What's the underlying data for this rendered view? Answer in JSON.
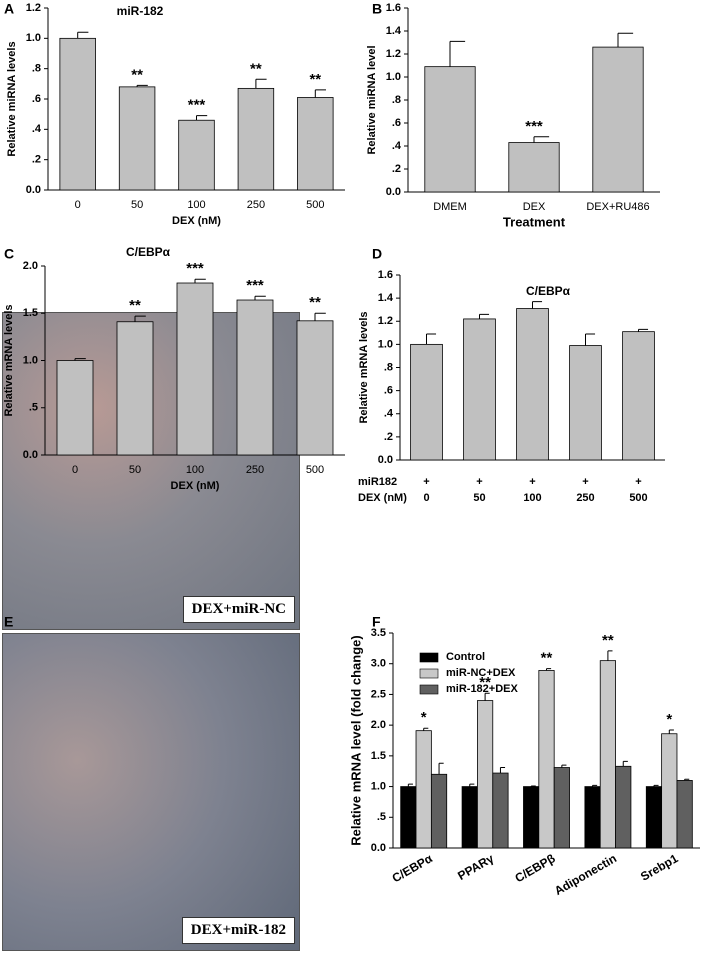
{
  "chart_data": [
    {
      "type": "bar",
      "panel": "A",
      "title": "miR-182",
      "ylabel": "Relative miRNA levels",
      "xlabel": "DEX (nM)",
      "categories": [
        "0",
        "50",
        "100",
        "250",
        "500"
      ],
      "values": [
        1.0,
        0.68,
        0.46,
        0.67,
        0.61
      ],
      "errors": [
        0.04,
        0.01,
        0.03,
        0.06,
        0.05
      ],
      "annotations": [
        null,
        "**",
        "***",
        "**",
        "**"
      ],
      "color": "#c0c0c0",
      "ylim": [
        0,
        1.2
      ],
      "yticks": [
        {
          "value": 0,
          "label": "0.0"
        },
        {
          "value": 0.2,
          "label": ".2"
        },
        {
          "value": 0.4,
          "label": ".4"
        },
        {
          "value": 0.6,
          "label": ".6"
        },
        {
          "value": 0.8,
          "label": ".8"
        },
        {
          "value": 1.0,
          "label": "1.0"
        },
        {
          "value": 1.2,
          "label": "1.2"
        }
      ]
    },
    {
      "type": "bar",
      "panel": "B",
      "ylabel": "Relative miRNA level",
      "xlabel": "Treatment",
      "categories": [
        "DMEM",
        "DEX",
        "DEX+RU486"
      ],
      "values": [
        1.09,
        0.43,
        1.26
      ],
      "errors": [
        0.22,
        0.05,
        0.12
      ],
      "annotations": [
        null,
        "***",
        null
      ],
      "color": "#c0c0c0",
      "ylim": [
        0,
        1.6
      ],
      "yticks": [
        {
          "value": 0,
          "label": "0.0"
        },
        {
          "value": 0.2,
          "label": ".2"
        },
        {
          "value": 0.4,
          "label": ".4"
        },
        {
          "value": 0.6,
          "label": ".6"
        },
        {
          "value": 0.8,
          "label": ".8"
        },
        {
          "value": 1.0,
          "label": "1.0"
        },
        {
          "value": 1.2,
          "label": "1.2"
        },
        {
          "value": 1.4,
          "label": "1.4"
        },
        {
          "value": 1.6,
          "label": "1.6"
        }
      ]
    },
    {
      "type": "bar",
      "panel": "C",
      "title": "C/EBPα",
      "ylabel": "Relative mRNA levels",
      "xlabel": "DEX (nM)",
      "categories": [
        "0",
        "50",
        "100",
        "250",
        "500"
      ],
      "values": [
        1.0,
        1.41,
        1.82,
        1.64,
        1.42
      ],
      "errors": [
        0.02,
        0.06,
        0.04,
        0.04,
        0.08
      ],
      "annotations": [
        null,
        "**",
        "***",
        "***",
        "**"
      ],
      "color": "#c0c0c0",
      "ylim": [
        0,
        2.0
      ],
      "yticks": [
        {
          "value": 0,
          "label": "0.0"
        },
        {
          "value": 0.5,
          "label": ".5"
        },
        {
          "value": 1.0,
          "label": "1.0"
        },
        {
          "value": 1.5,
          "label": "1.5"
        },
        {
          "value": 2.0,
          "label": "2.0"
        }
      ]
    },
    {
      "type": "bar",
      "panel": "D",
      "title": "C/EBPα",
      "ylabel": "Relative mRNA levels",
      "row_label": "miR182",
      "row_values": [
        "+",
        "+",
        "+",
        "+",
        "+"
      ],
      "category_label": "DEX (nM)",
      "categories": [
        "0",
        "50",
        "100",
        "250",
        "500"
      ],
      "values": [
        1.0,
        1.22,
        1.31,
        0.99,
        1.11
      ],
      "errors": [
        0.09,
        0.04,
        0.06,
        0.1,
        0.02
      ],
      "color": "#c0c0c0",
      "ylim": [
        0,
        1.6
      ],
      "yticks": [
        {
          "value": 0,
          "label": "0.0"
        },
        {
          "value": 0.2,
          "label": ".2"
        },
        {
          "value": 0.4,
          "label": ".4"
        },
        {
          "value": 0.6,
          "label": ".6"
        },
        {
          "value": 0.8,
          "label": ".8"
        },
        {
          "value": 1.0,
          "label": "1.0"
        },
        {
          "value": 1.2,
          "label": "1.2"
        },
        {
          "value": 1.4,
          "label": "1.4"
        },
        {
          "value": 1.6,
          "label": "1.6"
        }
      ]
    },
    {
      "type": "bar",
      "panel": "F",
      "ylabel": "Relative mRNA level (fold change)",
      "categories": [
        "C/EBPα",
        "PPARγ",
        "C/EBPβ",
        "Adiponectin",
        "Srebp1"
      ],
      "series": [
        {
          "name": "Control",
          "color": "#000000",
          "values": [
            1.0,
            1.0,
            1.0,
            1.0,
            1.0
          ],
          "errors": [
            0.04,
            0.04,
            0.01,
            0.02,
            0.02
          ]
        },
        {
          "name": "miR-NC+DEX",
          "color": "#c8c8c8",
          "values": [
            1.91,
            2.4,
            2.89,
            3.05,
            1.86
          ],
          "errors": [
            0.04,
            0.12,
            0.03,
            0.16,
            0.06
          ],
          "annotations": [
            "*",
            "**",
            "**",
            "**",
            "*"
          ]
        },
        {
          "name": "miR-182+DEX",
          "color": "#606060",
          "values": [
            1.2,
            1.22,
            1.31,
            1.33,
            1.1
          ],
          "errors": [
            0.18,
            0.09,
            0.04,
            0.08,
            0.02
          ]
        }
      ],
      "ylim": [
        0,
        3.5
      ],
      "yticks": [
        {
          "value": 0,
          "label": "0.0"
        },
        {
          "value": 0.5,
          "label": ".5"
        },
        {
          "value": 1.0,
          "label": "1.0"
        },
        {
          "value": 1.5,
          "label": "1.5"
        },
        {
          "value": 2.0,
          "label": "2.0"
        },
        {
          "value": 2.5,
          "label": "2.5"
        },
        {
          "value": 3.0,
          "label": "3.0"
        },
        {
          "value": 3.5,
          "label": "3.5"
        }
      ]
    }
  ],
  "images": {
    "panel": "E",
    "labels": [
      "DEX+miR-NC",
      "DEX+miR-182"
    ]
  }
}
